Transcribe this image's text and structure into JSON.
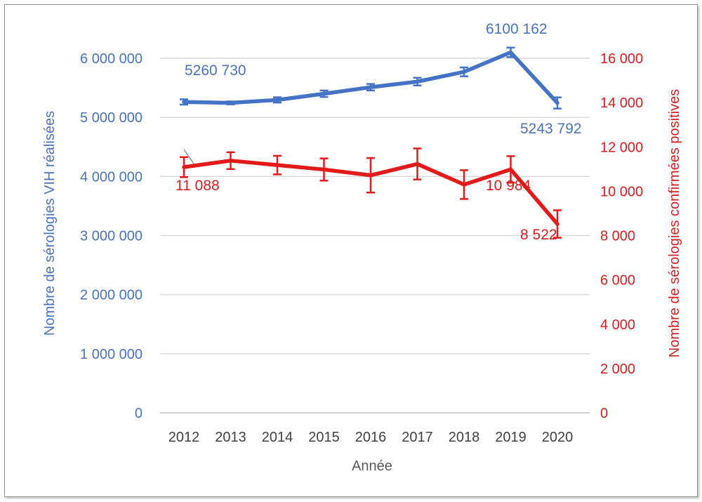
{
  "chart_data": {
    "type": "line",
    "title": "",
    "xlabel": "Année",
    "ylabel_left": "Nombre de sérologies VIH réalisées",
    "ylabel_right": "Nombre de sérologies confirmées positives",
    "categories": [
      "2012",
      "2013",
      "2014",
      "2015",
      "2016",
      "2017",
      "2018",
      "2019",
      "2020"
    ],
    "left_axis": {
      "ylim": [
        0,
        6000000
      ],
      "ticks": [
        0,
        1000000,
        2000000,
        3000000,
        4000000,
        5000000,
        6000000
      ],
      "tick_labels": [
        "0",
        "1 000 000",
        "2 000 000",
        "3 000 000",
        "4 000 000",
        "5 000 000",
        "6 000 000"
      ]
    },
    "right_axis": {
      "ylim": [
        0,
        16000
      ],
      "ticks": [
        0,
        2000,
        4000,
        6000,
        8000,
        10000,
        12000,
        14000,
        16000
      ],
      "tick_labels": [
        "0",
        "2 000",
        "4 000",
        "6 000",
        "8 000",
        "10 000",
        "12 000",
        "14 000",
        "16 000"
      ]
    },
    "series": [
      {
        "axis": "left",
        "color": "#4472c4",
        "values": [
          5260730,
          5245000,
          5295000,
          5400000,
          5510000,
          5605000,
          5770000,
          6100162,
          5243792
        ],
        "error": [
          45000,
          25000,
          45000,
          55000,
          55000,
          65000,
          75000,
          80000,
          95000
        ],
        "data_labels": [
          {
            "index": 0,
            "text": "5260 730"
          },
          {
            "index": 7,
            "text": "6100 162"
          },
          {
            "index": 8,
            "text": "5243 792"
          }
        ]
      },
      {
        "axis": "right",
        "color": "#e31a1a",
        "values": [
          11088,
          11380,
          11180,
          10980,
          10720,
          11230,
          10300,
          10984,
          8522
        ],
        "error": [
          450,
          380,
          420,
          500,
          780,
          700,
          650,
          600,
          620
        ],
        "data_labels": [
          {
            "index": 0,
            "text": "11 088"
          },
          {
            "index": 7,
            "text": "10 984"
          },
          {
            "index": 8,
            "text": "8 522"
          }
        ]
      }
    ],
    "grid": true,
    "legend": "none"
  }
}
